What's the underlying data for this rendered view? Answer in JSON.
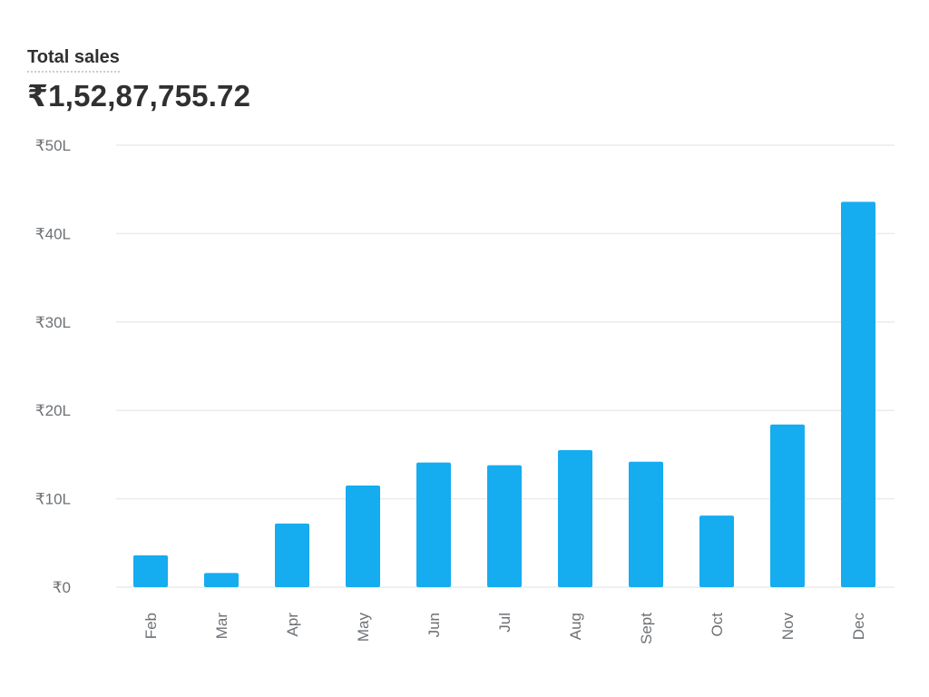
{
  "header": {
    "title": "Total sales",
    "value": "₹1,52,87,755.72"
  },
  "chart_data": {
    "type": "bar",
    "title": "Total sales",
    "xlabel": "",
    "ylabel": "",
    "ylim": [
      0,
      50
    ],
    "yunit": "L",
    "yticks": [
      0,
      10,
      20,
      30,
      40,
      50
    ],
    "ytick_labels": [
      "₹0",
      "₹10L",
      "₹20L",
      "₹30L",
      "₹40L",
      "₹50L"
    ],
    "categories": [
      "Feb",
      "Mar",
      "Apr",
      "May",
      "Jun",
      "Jul",
      "Aug",
      "Sept",
      "Oct",
      "Nov",
      "Dec"
    ],
    "values": [
      3.6,
      1.6,
      7.2,
      11.5,
      14.1,
      13.8,
      15.5,
      14.2,
      8.1,
      18.4,
      43.6
    ],
    "bar_color": "#16acf0",
    "grid": true,
    "legend": false
  }
}
